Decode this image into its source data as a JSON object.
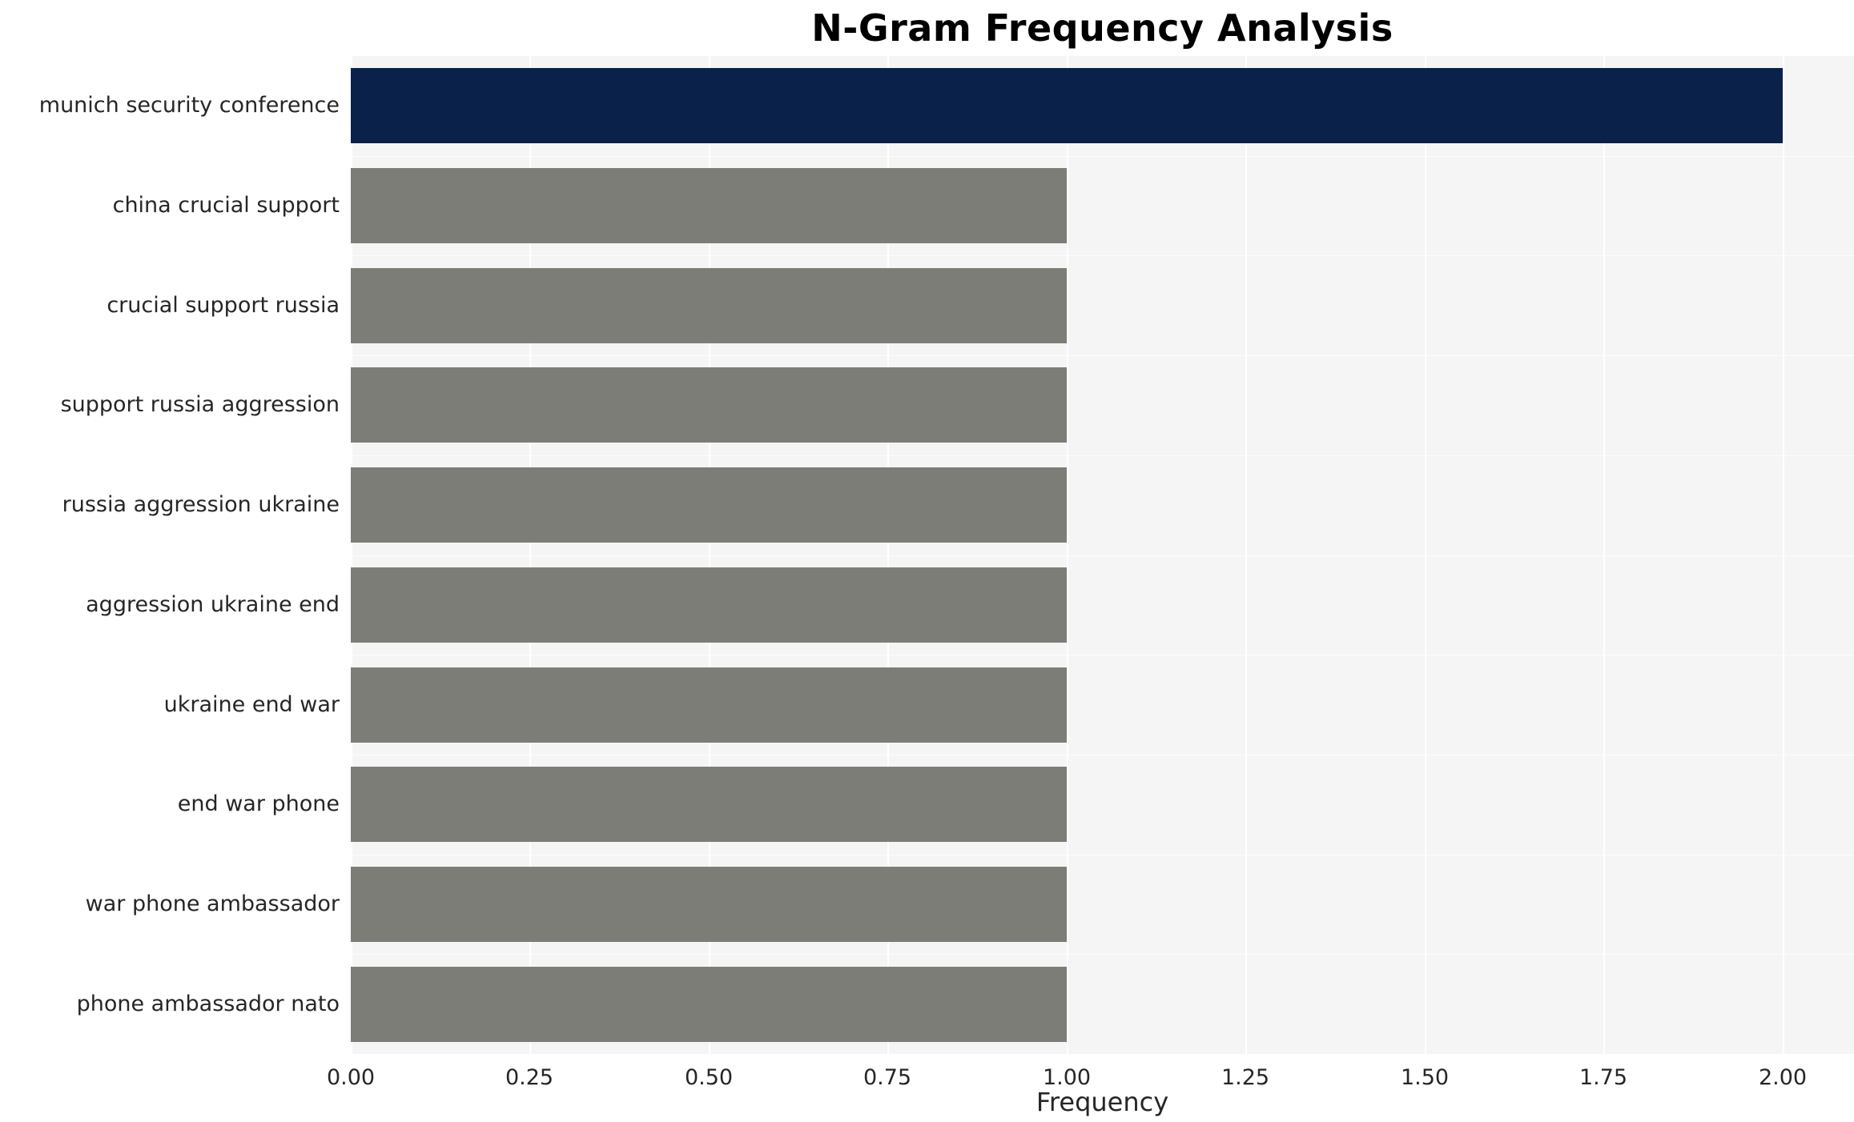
{
  "title": "N-Gram Frequency Analysis",
  "colors": {
    "highlight_bar": "#0a2149",
    "default_bar": "#7d7d77",
    "plot_background": "#f5f5f5",
    "gridline": "#ffffff",
    "text": "#262626",
    "title_text": "#000000"
  },
  "chart_data": {
    "type": "bar",
    "orientation": "horizontal",
    "title": "N-Gram Frequency Analysis",
    "categories": [
      "munich security conference",
      "china crucial support",
      "crucial support russia",
      "support russia aggression",
      "russia aggression ukraine",
      "aggression ukraine end",
      "ukraine end war",
      "end war phone",
      "war phone ambassador",
      "phone ambassador nato"
    ],
    "values": [
      2.0,
      1.0,
      1.0,
      1.0,
      1.0,
      1.0,
      1.0,
      1.0,
      1.0,
      1.0
    ],
    "xlabel": "Frequency",
    "ylabel": "",
    "xlim": [
      0,
      2.1
    ],
    "xticks": [
      0.0,
      0.25,
      0.5,
      0.75,
      1.0,
      1.25,
      1.5,
      1.75,
      2.0
    ],
    "tick_decimals": 2,
    "highlight_index": 0,
    "grid": true,
    "legend": false
  }
}
